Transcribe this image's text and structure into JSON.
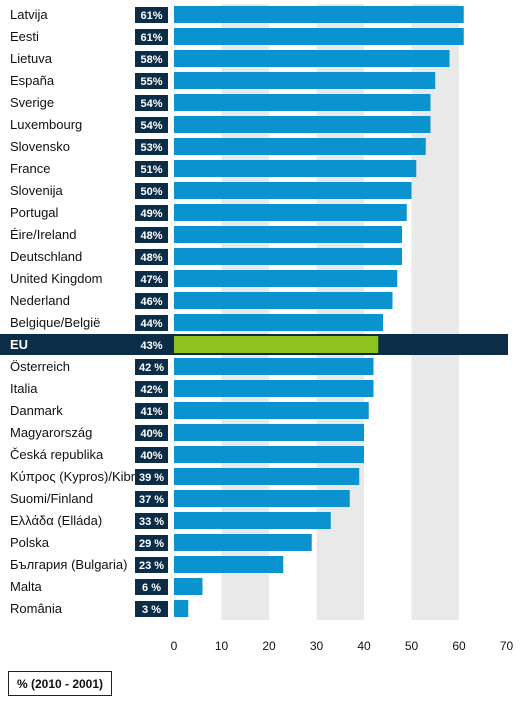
{
  "chart_data": {
    "type": "bar",
    "orientation": "horizontal",
    "categories": [
      "Latvija",
      "Eesti",
      "Lietuva",
      "España",
      "Sverige",
      "Luxembourg",
      "Slovensko",
      "France",
      "Slovenija",
      "Portugal",
      "Éire/Ireland",
      "Deutschland",
      "United Kingdom",
      "Nederland",
      "Belgique/België",
      "EU",
      "Österreich",
      "Italia",
      "Danmark",
      "Magyarország",
      "Česká republika",
      "Κύπρος (Kypros)/Kibris",
      "Suomi/Finland",
      "Ελλάδα (Elláda)",
      "Polska",
      "България (Bulgaria)",
      "Malta",
      "România"
    ],
    "values": [
      61,
      61,
      58,
      55,
      54,
      54,
      53,
      51,
      50,
      49,
      48,
      48,
      47,
      46,
      44,
      43,
      42,
      42,
      41,
      40,
      40,
      39,
      37,
      33,
      29,
      23,
      6,
      3
    ],
    "value_labels": [
      "61%",
      "61%",
      "58%",
      "55%",
      "54%",
      "54%",
      "53%",
      "51%",
      "50%",
      "49%",
      "48%",
      "48%",
      "47%",
      "46%",
      "44%",
      "43%",
      "42 %",
      "42%",
      "41%",
      "40%",
      "40%",
      "39 %",
      "37 %",
      "33 %",
      "29 %",
      "23 %",
      "6 %",
      "3 %"
    ],
    "highlight": "EU",
    "xlim": [
      0,
      70
    ],
    "xticks": [
      0,
      10,
      20,
      30,
      40,
      50,
      60,
      70
    ],
    "unit_label": "% (2010 - 2001)",
    "grid": "alternating vertical bands",
    "colors": {
      "bar": "#0a93cf",
      "highlight_bar": "#8dc21f",
      "label_box": "#0c2d48",
      "band": "#e9e9e9"
    }
  }
}
